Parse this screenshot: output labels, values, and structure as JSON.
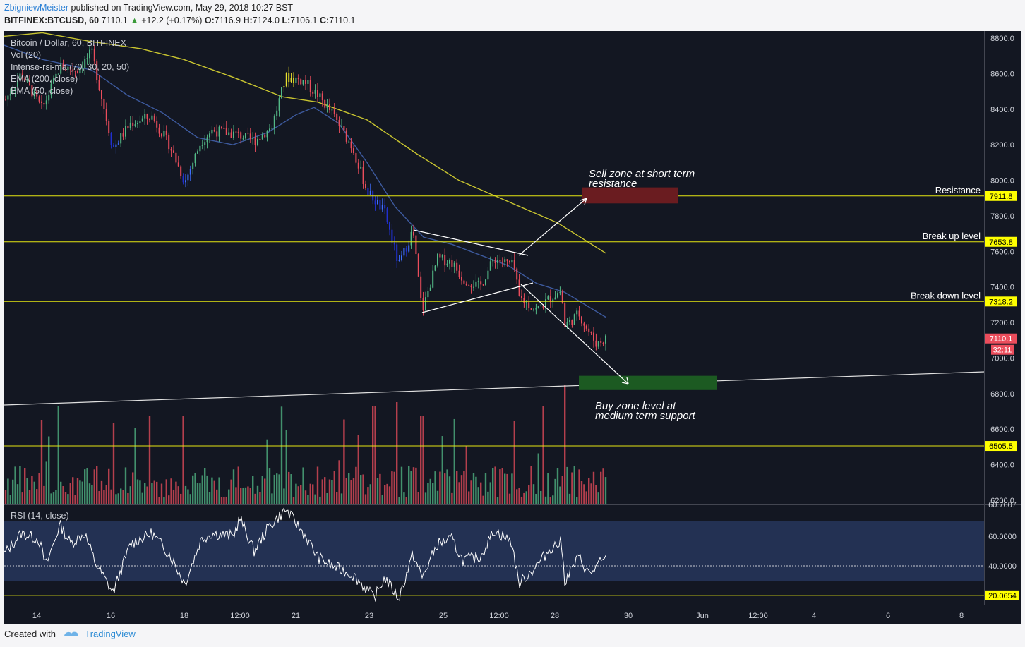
{
  "header": {
    "author": "ZbigniewMeister",
    "published": "published on TradingView.com, May 29, 2018 10:27 BST",
    "symbol": "BITFINEX:BTCUSD, 60",
    "last": "7110.1",
    "change": "+12.2 (+0.17%)",
    "ohlc": {
      "O": "7116.9",
      "H": "7124.0",
      "L": "7106.1",
      "C": "7110.1"
    }
  },
  "legend": {
    "title": "Bitcoin / Dollar, 60, BITFINEX",
    "items": [
      "Vol (20)",
      "Intense-rsi-ma (70, 30, 20, 50)",
      "EMA (200, close)",
      "EMA (50, close)"
    ]
  },
  "footer": {
    "created": "Created with",
    "brand": "TradingView"
  },
  "colors": {
    "bg": "#131722",
    "up": "#53b987",
    "down": "#eb4d5c",
    "ema200": "#c9c530",
    "ema50": "#3d5a9e",
    "hline": "#e5e511",
    "rsi": "#ffffff",
    "rsiband": "#233153",
    "sell": "#6a1c20",
    "buy": "#1c5a22"
  },
  "chart_data": {
    "type": "candlestick",
    "price_axis": {
      "range": [
        6170,
        8840
      ],
      "ticks": [
        "8800.0",
        "8600.0",
        "8400.0",
        "8200.0",
        "8000.0",
        "7800.0",
        "7600.0",
        "7400.0",
        "7200.0",
        "7000.0",
        "6800.0",
        "6600.0",
        "6400.0",
        "6200.0"
      ],
      "cut_label": "60.7607",
      "current_price": "7110.1",
      "countdown": "32:11"
    },
    "time_axis": {
      "ticks": [
        "14",
        "16",
        "18",
        "12:00",
        "21",
        "23",
        "25",
        "12:00",
        "28",
        "30",
        "Jun",
        "12:00",
        "4",
        "6",
        "8"
      ]
    },
    "horizontal_levels": [
      {
        "price": 7911.8,
        "label": "7911.8",
        "text": "Resistance"
      },
      {
        "price": 7653.8,
        "label": "7653.8",
        "text": "Break up level"
      },
      {
        "price": 7318.2,
        "label": "7318.2",
        "text": "Break down level"
      },
      {
        "price": 6505.5,
        "label": "6505.5",
        "text": ""
      }
    ],
    "annotations": [
      {
        "name": "sell-zone",
        "lines": [
          "Sell zone at short term",
          "resistance"
        ],
        "price_range": [
          7870,
          7960
        ]
      },
      {
        "name": "buy-zone",
        "lines": [
          "Buy zone level at",
          "medium term support"
        ],
        "price_range": [
          6820,
          6900
        ]
      }
    ],
    "candles_approx": [
      {
        "t": "14",
        "close": 8400
      },
      {
        "t": "15",
        "close": 8600
      },
      {
        "t": "16",
        "close": 8200
      },
      {
        "t": "17",
        "close": 8350
      },
      {
        "t": "18",
        "close": 8000
      },
      {
        "t": "19",
        "close": 8280
      },
      {
        "t": "20",
        "close": 8300
      },
      {
        "t": "21",
        "close": 8600
      },
      {
        "t": "22",
        "close": 8250
      },
      {
        "t": "23",
        "close": 7600
      },
      {
        "t": "24",
        "close": 7400
      },
      {
        "t": "25",
        "close": 7500
      },
      {
        "t": "26",
        "close": 7550
      },
      {
        "t": "27",
        "close": 7300
      },
      {
        "t": "28",
        "close": 7250
      },
      {
        "t": "29",
        "close": 7110
      }
    ],
    "rsi": {
      "title": "RSI (14, close)",
      "ticks": [
        "60.0000",
        "40.0000"
      ],
      "band": [
        30,
        70
      ],
      "level_label": "20.0654"
    }
  }
}
